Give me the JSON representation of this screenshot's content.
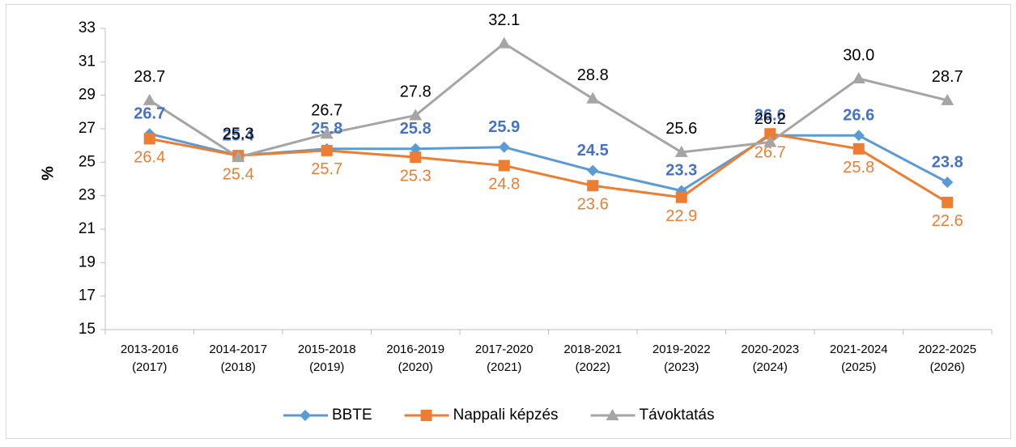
{
  "chart_data": {
    "type": "line",
    "ylabel": "%",
    "categories": [
      "2013-2016\n(2017)",
      "2014-2017\n(2018)",
      "2015-2018\n(2019)",
      "2016-2019\n(2020)",
      "2017-2020\n(2021)",
      "2018-2021\n(2022)",
      "2019-2022\n(2023)",
      "2020-2023\n(2024)",
      "2021-2024\n(2025)",
      "2022-2025\n(2026)"
    ],
    "series": [
      {
        "name": "BBTE",
        "color": "#5b9bd5",
        "label_color": "#4472c4",
        "marker": "diamond",
        "values": [
          26.7,
          25.4,
          25.8,
          25.8,
          25.9,
          24.5,
          23.3,
          26.6,
          26.6,
          23.8
        ],
        "value_labels": [
          "26.7",
          "25.4",
          "25.8",
          "25.8",
          "25.9",
          "24.5",
          "23.3",
          "26.6",
          "26.6",
          "23.8"
        ]
      },
      {
        "name": "Nappali képzés",
        "color": "#ed7d31",
        "label_color": "#ed7d31",
        "marker": "square",
        "values": [
          26.4,
          25.4,
          25.7,
          25.3,
          24.8,
          23.6,
          22.9,
          26.7,
          25.8,
          22.6
        ],
        "value_labels": [
          "26.4",
          "25.4",
          "25.7",
          "25.3",
          "24.8",
          "23.6",
          "22.9",
          "26.7",
          "25.8",
          "22.6"
        ]
      },
      {
        "name": "Távoktatás",
        "color": "#a5a5a5",
        "label_color": "#000000",
        "marker": "triangle",
        "values": [
          28.7,
          25.3,
          26.7,
          27.8,
          32.1,
          28.8,
          25.6,
          26.2,
          30.0,
          28.7
        ],
        "value_labels": [
          "28.7",
          "25.3",
          "26.7",
          "27.8",
          "32.1",
          "28.8",
          "25.6",
          "26.2",
          "30.0",
          "28.7"
        ]
      }
    ],
    "ylim": [
      15,
      33
    ],
    "yticks": [
      15,
      17,
      19,
      21,
      23,
      25,
      27,
      29,
      31,
      33
    ],
    "legend": "bottom"
  }
}
